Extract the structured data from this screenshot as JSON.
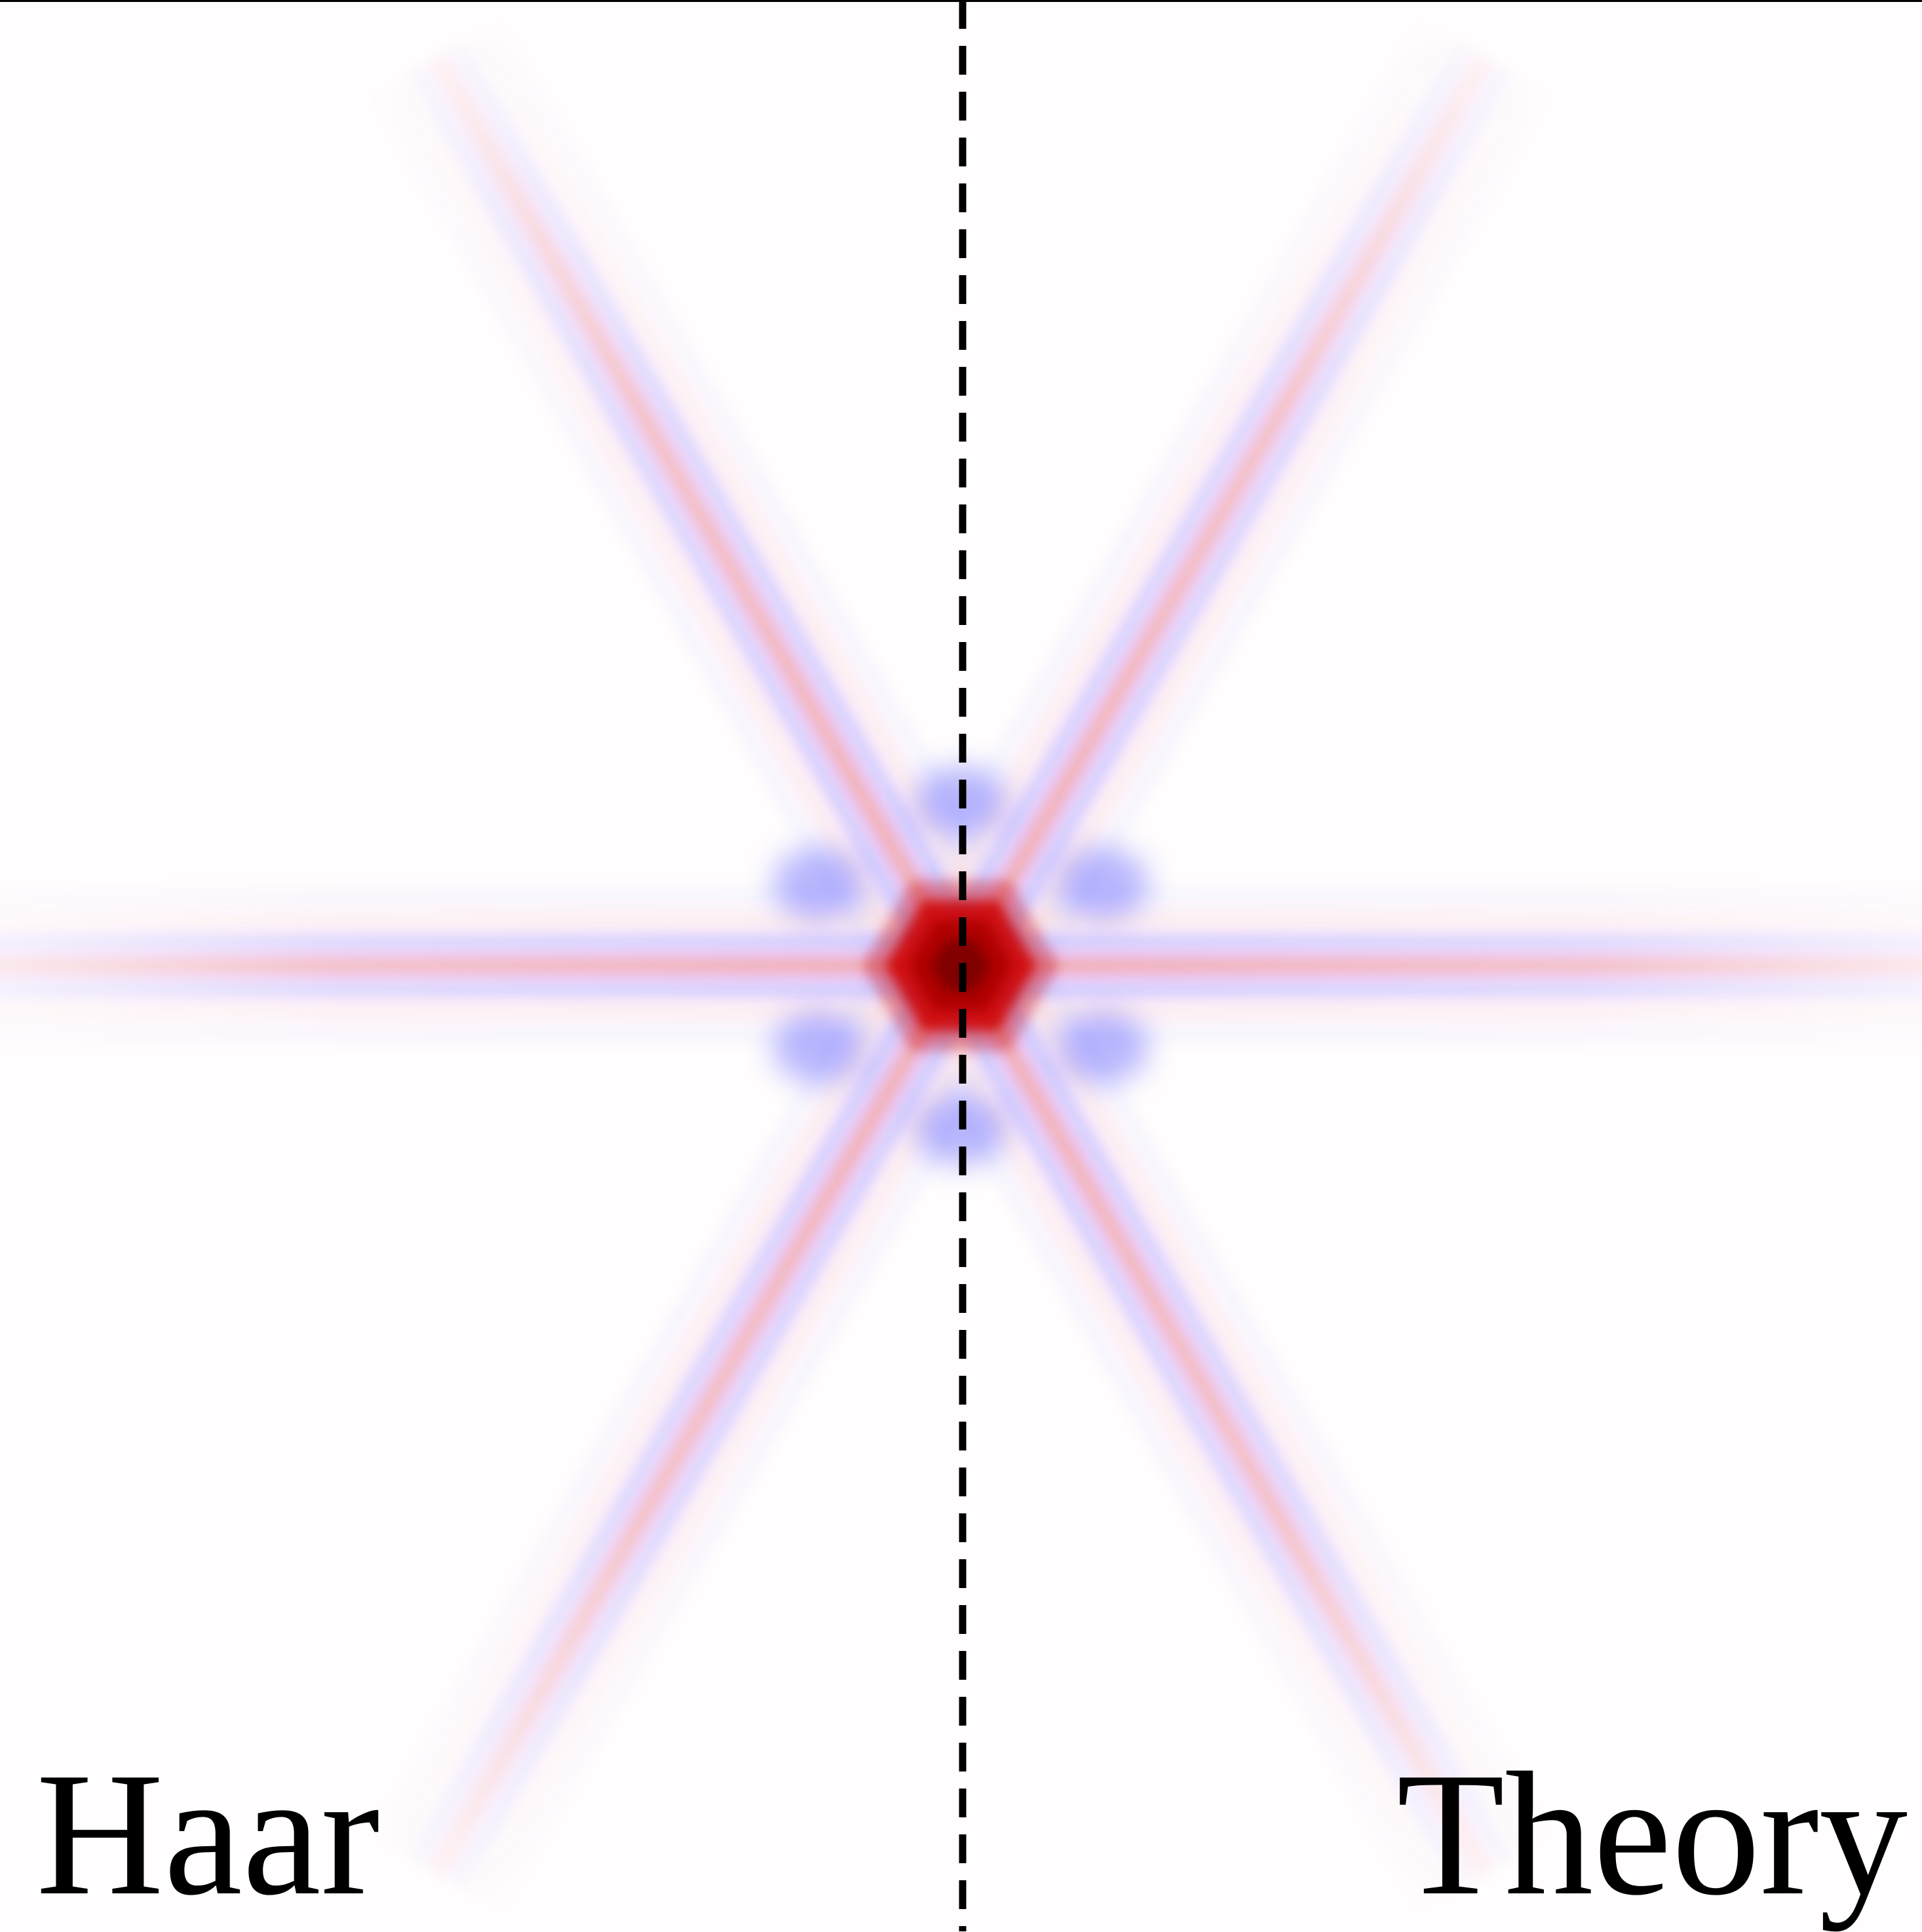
{
  "chart_data": {
    "type": "heatmap",
    "title": "",
    "xlabel": "",
    "ylabel": "",
    "panels": [
      {
        "side": "left",
        "label": "Haar"
      },
      {
        "side": "right",
        "label": "Theory"
      }
    ],
    "separator": {
      "style": "dashed",
      "color": "#000000"
    },
    "colormap": {
      "name": "seismic",
      "negative": "#0000ff",
      "zero": "#ffffff",
      "positive": "#cc0000",
      "peak": "#800000"
    },
    "pattern": {
      "center_value": 1.0,
      "arm_angles_deg": [
        0,
        60,
        120
      ],
      "arm_profile": [
        {
          "offset": 0,
          "value": 0.3
        },
        {
          "offset": 1,
          "value": -0.18
        },
        {
          "offset": 2,
          "value": 0.06
        },
        {
          "offset": 3,
          "value": -0.03
        }
      ]
    },
    "grid": false,
    "legend": "none"
  }
}
